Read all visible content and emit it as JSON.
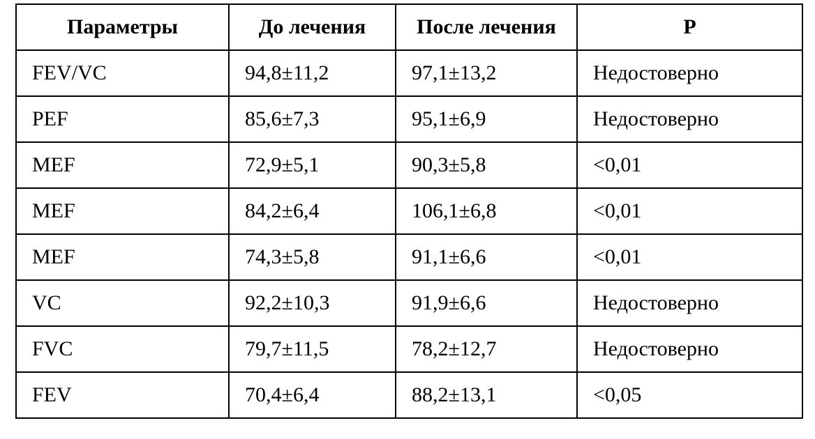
{
  "table": {
    "header": [
      "Параметры",
      "До лечения",
      "После лечения",
      "P"
    ],
    "rows": [
      [
        "FEV/VC",
        "94,8±11,2",
        "97,1±13,2",
        "Недостоверно"
      ],
      [
        "PEF",
        "85,6±7,3",
        "95,1±6,9",
        "Недостоверно"
      ],
      [
        "MEF",
        "72,9±5,1",
        "90,3±5,8",
        "<0,01"
      ],
      [
        "MEF",
        "84,2±6,4",
        "106,1±6,8",
        "<0,01"
      ],
      [
        "MEF",
        "74,3±5,8",
        "91,1±6,6",
        "<0,01"
      ],
      [
        "VC",
        "92,2±10,3",
        "91,9±6,6",
        "Недостоверно"
      ],
      [
        "FVC",
        "79,7±11,5",
        "78,2±12,7",
        "Недостоверно"
      ],
      [
        "FEV",
        "70,4±6,4",
        "88,2±13,1",
        "<0,05"
      ]
    ]
  }
}
